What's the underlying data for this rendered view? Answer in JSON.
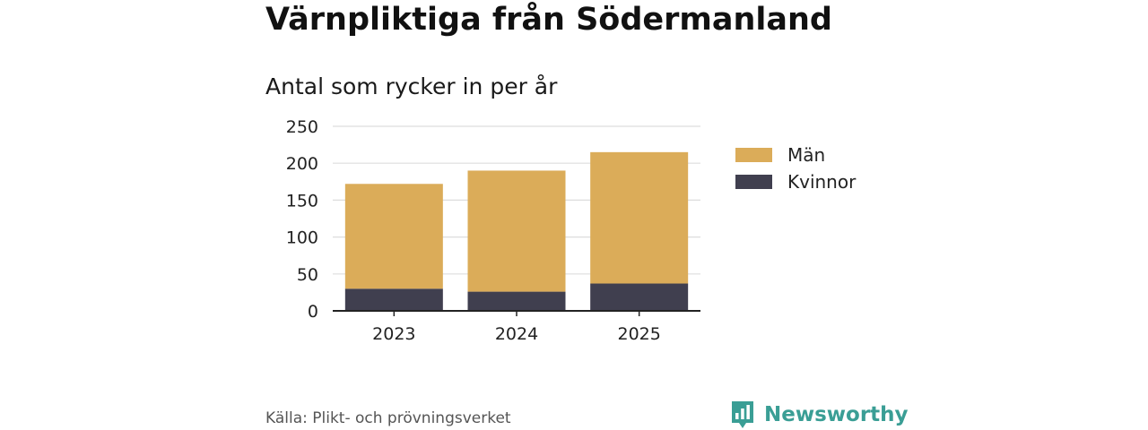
{
  "title": "Värnpliktiga från Södermanland",
  "subtitle": "Antal som rycker in per år",
  "source": "Källa: Plikt- och prövningsverket",
  "brand": {
    "name": "Newsworthy",
    "icon": "newsworthy-logo-icon",
    "color": "#3a9e95"
  },
  "chart_data": {
    "type": "bar",
    "stacked": true,
    "title": "Värnpliktiga från Södermanland",
    "subtitle": "Antal som rycker in per år",
    "categories": [
      "2023",
      "2024",
      "2025"
    ],
    "series": [
      {
        "name": "Kvinnor",
        "color": "#403f4f",
        "values": [
          30,
          26,
          37
        ]
      },
      {
        "name": "Män",
        "color": "#dbac59",
        "values": [
          142,
          164,
          178
        ]
      }
    ],
    "totals": [
      172,
      190,
      215
    ],
    "ylim": [
      0,
      250
    ],
    "yticks": [
      0,
      50,
      100,
      150,
      200,
      250
    ],
    "grid": true,
    "legend": {
      "position": "right",
      "order": [
        "Män",
        "Kvinnor"
      ]
    },
    "xlabel": "",
    "ylabel": ""
  }
}
